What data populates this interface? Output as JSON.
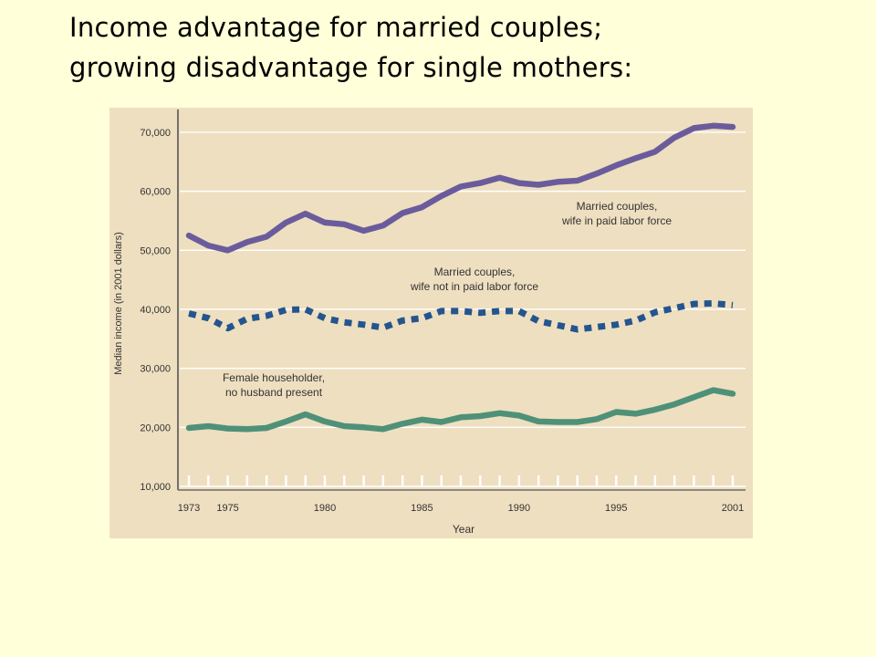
{
  "slide": {
    "title_line1": "Income advantage for married couples;",
    "title_line2": "growing disadvantage for single mothers:"
  },
  "colors": {
    "slide_background": "#ffffd9",
    "plot_background": "#eedfc0",
    "married_wife_working": "#6a5c9c",
    "married_wife_not_working": "#24558e",
    "female_householder": "#4e9178"
  },
  "chart_data": {
    "type": "line",
    "title": "",
    "xlabel": "Year",
    "ylabel": "Median income (in 2001 dollars)",
    "xlim": [
      1973,
      2001
    ],
    "ylim": [
      10000,
      72000
    ],
    "x_tick_labels": [
      "1973",
      "1975",
      "1980",
      "1985",
      "1990",
      "1995",
      "2001"
    ],
    "x_tick_values": [
      1973,
      1975,
      1980,
      1985,
      1990,
      1995,
      2001
    ],
    "y_tick_labels": [
      "10,000",
      "20,000",
      "30,000",
      "40,000",
      "50,000",
      "60,000",
      "70,000"
    ],
    "y_tick_values": [
      10000,
      20000,
      30000,
      40000,
      50000,
      60000,
      70000
    ],
    "grid": true,
    "x": [
      1973,
      1974,
      1975,
      1976,
      1977,
      1978,
      1979,
      1980,
      1981,
      1982,
      1983,
      1984,
      1985,
      1986,
      1987,
      1988,
      1989,
      1990,
      1991,
      1992,
      1993,
      1994,
      1995,
      1996,
      1997,
      1998,
      1999,
      2000,
      2001
    ],
    "series": [
      {
        "name": "Married couples, wife in paid labor force",
        "label_line1": "Married couples,",
        "label_line2": "wife in paid labor force",
        "style": "solid",
        "color": "#6a5c9c",
        "values": [
          52500,
          50800,
          50000,
          51400,
          52300,
          54700,
          56200,
          54700,
          54400,
          53300,
          54200,
          56300,
          57300,
          59200,
          60800,
          61400,
          62300,
          61400,
          61100,
          61600,
          61800,
          63000,
          64400,
          65600,
          66700,
          69100,
          70700,
          71100,
          70900
        ]
      },
      {
        "name": "Married couples, wife not in paid labor force",
        "label_line1": "Married couples,",
        "label_line2": "wife not in paid labor force",
        "style": "dotted",
        "color": "#24558e",
        "values": [
          39300,
          38500,
          36800,
          38400,
          38900,
          39900,
          40000,
          38500,
          37800,
          37400,
          36900,
          38100,
          38500,
          39700,
          39700,
          39400,
          39700,
          39700,
          38000,
          37300,
          36600,
          37000,
          37400,
          38100,
          39500,
          40200,
          40900,
          41000,
          40700
        ]
      },
      {
        "name": "Female householder, no husband present",
        "label_line1": "Female householder,",
        "label_line2": "no husband present",
        "style": "solid",
        "color": "#4e9178",
        "values": [
          19900,
          20200,
          19800,
          19700,
          19900,
          21000,
          22200,
          21000,
          20200,
          20000,
          19700,
          20600,
          21300,
          20900,
          21700,
          21900,
          22400,
          22000,
          21000,
          20900,
          20900,
          21400,
          22600,
          22300,
          23000,
          23900,
          25100,
          26300,
          25700
        ]
      }
    ]
  }
}
